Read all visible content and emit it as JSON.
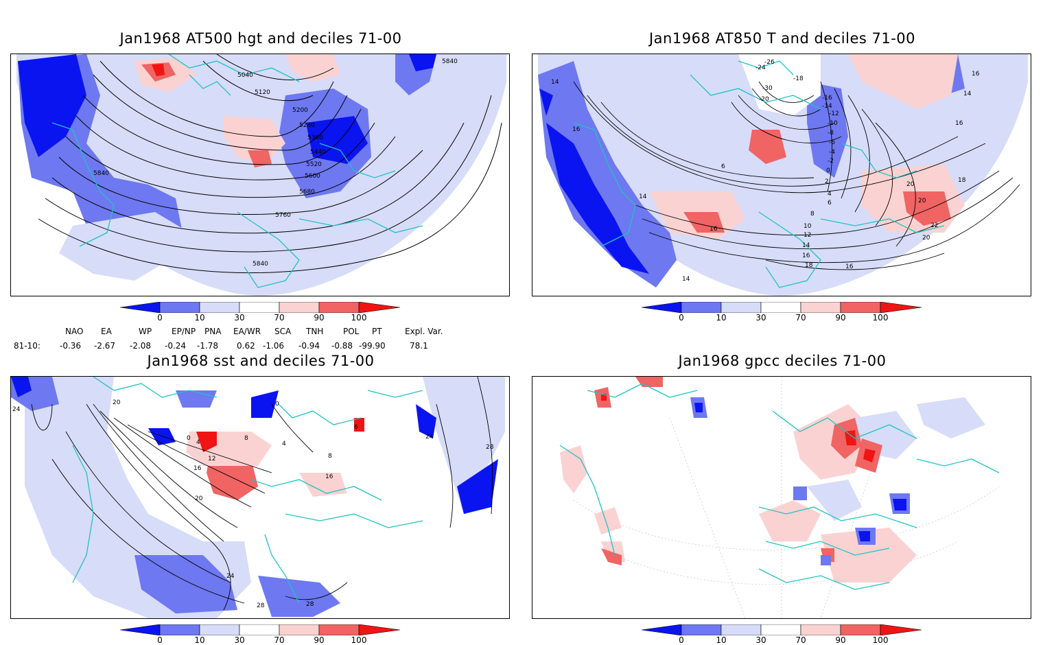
{
  "panels": [
    {
      "title": "Jan1968 AT500 hgt and deciles 71-00",
      "contour_labels": [
        "5040",
        "5120",
        "5200",
        "5280",
        "5360",
        "5440",
        "5520",
        "5600",
        "5680",
        "5760",
        "5840",
        "5840",
        "5840"
      ]
    },
    {
      "title": "Jan1968 AT850 T and deciles 71-00",
      "contour_labels": [
        "-26",
        "-24",
        "-30",
        "-18",
        "-20",
        "-16",
        "-14",
        "-12",
        "-10",
        "-8",
        "-6",
        "-4",
        "-2",
        "0",
        "2",
        "4",
        "6",
        "8",
        "10",
        "12",
        "14",
        "16",
        "18",
        "20",
        "22",
        "20",
        "16",
        "14",
        "16",
        "14",
        "16",
        "14",
        "16",
        "6",
        "18",
        "16",
        "14",
        "20"
      ]
    },
    {
      "title": "Jan1968 sst and deciles 71-00",
      "contour_labels": [
        "20",
        "24",
        "0",
        "4",
        "8",
        "12",
        "16",
        "20",
        "24",
        "28",
        "28",
        "24",
        "28",
        "16",
        "4",
        "8",
        "0",
        "6"
      ]
    },
    {
      "title": "Jan1968 gpcc deciles 71-00",
      "contour_labels": []
    }
  ],
  "colorbar": {
    "labels": [
      "0",
      "10",
      "30",
      "70",
      "90",
      "100"
    ],
    "colors": [
      "#0a14f0",
      "#6e78f0",
      "#d7dcf8",
      "#ffffff",
      "#fbd2d2",
      "#f06464",
      "#f01414"
    ]
  },
  "indices": {
    "names": [
      "NAO",
      "EA",
      "WP",
      "EP/NP",
      "PNA",
      "EA/WR",
      "SCA",
      "TNH",
      "POL",
      "PT",
      "Expl. Var."
    ],
    "row_label": "81-10:",
    "values": [
      "-0.36",
      "-2.67",
      "-2.08",
      "-0.24",
      "-1.78",
      "0.62",
      "-1.06",
      "-0.94",
      "-0.88",
      "-99.90",
      "78.1"
    ]
  },
  "colors": {
    "coast": "#20c0c0",
    "contour": "#000000",
    "deep_blue": "#0a14f0",
    "mid_blue": "#6e78f0",
    "light_blue": "#d7dcf8",
    "light_red": "#fbd2d2",
    "mid_red": "#f06464",
    "deep_red": "#f01414"
  }
}
